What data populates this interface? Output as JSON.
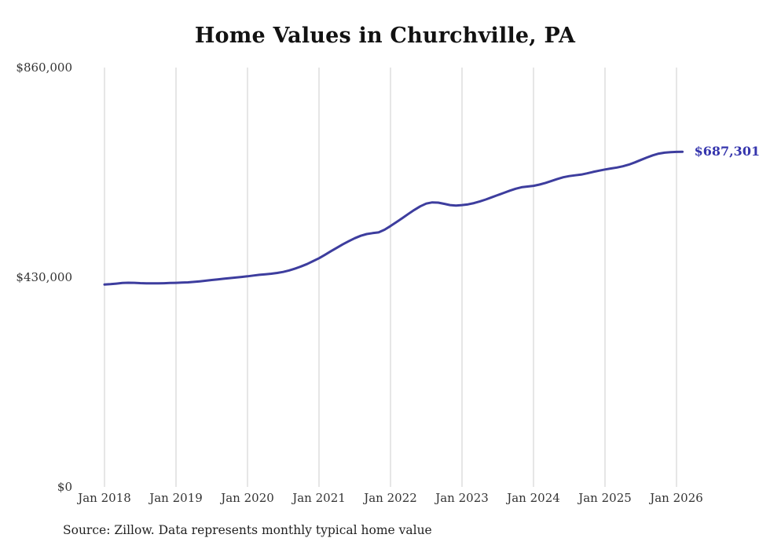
{
  "chart_data": {
    "type": "line",
    "title": "Home Values in Churchville, PA",
    "source": "Source: Zillow. Data represents monthly typical home value",
    "end_label": "$687,301",
    "latest_value": 687301,
    "line_color": "#3d3d9e",
    "end_label_color": "#3535ad",
    "grid_color": "#cccccc",
    "xlabel": "",
    "ylabel": "",
    "ylim": [
      0,
      860000
    ],
    "grid": "vertical-only",
    "legend_position": "none",
    "y_ticks": [
      {
        "label": "$860,000",
        "value": 860000
      },
      {
        "label": "$430,000",
        "value": 430000
      },
      {
        "label": "$0",
        "value": 0
      }
    ],
    "x_ticks": [
      "Jan 2018",
      "Jan 2019",
      "Jan 2020",
      "Jan 2021",
      "Jan 2022",
      "Jan 2023",
      "Jan 2024",
      "Jan 2025",
      "Jan 2026"
    ],
    "series": [
      {
        "name": "Monthly typical home value",
        "start_month": "2018-01",
        "frequency": "monthly",
        "values": [
          415000,
          415800,
          417000,
          418200,
          418800,
          418500,
          418000,
          417600,
          417400,
          417500,
          417800,
          418200,
          418600,
          419000,
          419600,
          420500,
          421600,
          422900,
          424300,
          425700,
          427000,
          428200,
          429400,
          430600,
          432000,
          433500,
          435000,
          436200,
          437300,
          438800,
          441000,
          444000,
          447800,
          452200,
          457000,
          463000,
          469000,
          476000,
          483500,
          490500,
          497500,
          504000,
          510000,
          515000,
          518500,
          520500,
          522000,
          527500,
          535000,
          543000,
          551500,
          560000,
          568000,
          575500,
          581000,
          583500,
          583000,
          580500,
          578000,
          577000,
          578000,
          579500,
          582000,
          585500,
          589500,
          594000,
          598500,
          603000,
          607500,
          611500,
          614500,
          616000,
          617500,
          620000,
          623500,
          627500,
          631500,
          635000,
          637500,
          639000,
          640500,
          643000,
          646000,
          648500,
          651000,
          653000,
          655000,
          657500,
          661000,
          665500,
          670500,
          675500,
          680000,
          683500,
          685500,
          686500,
          687000,
          687301
        ]
      }
    ]
  }
}
